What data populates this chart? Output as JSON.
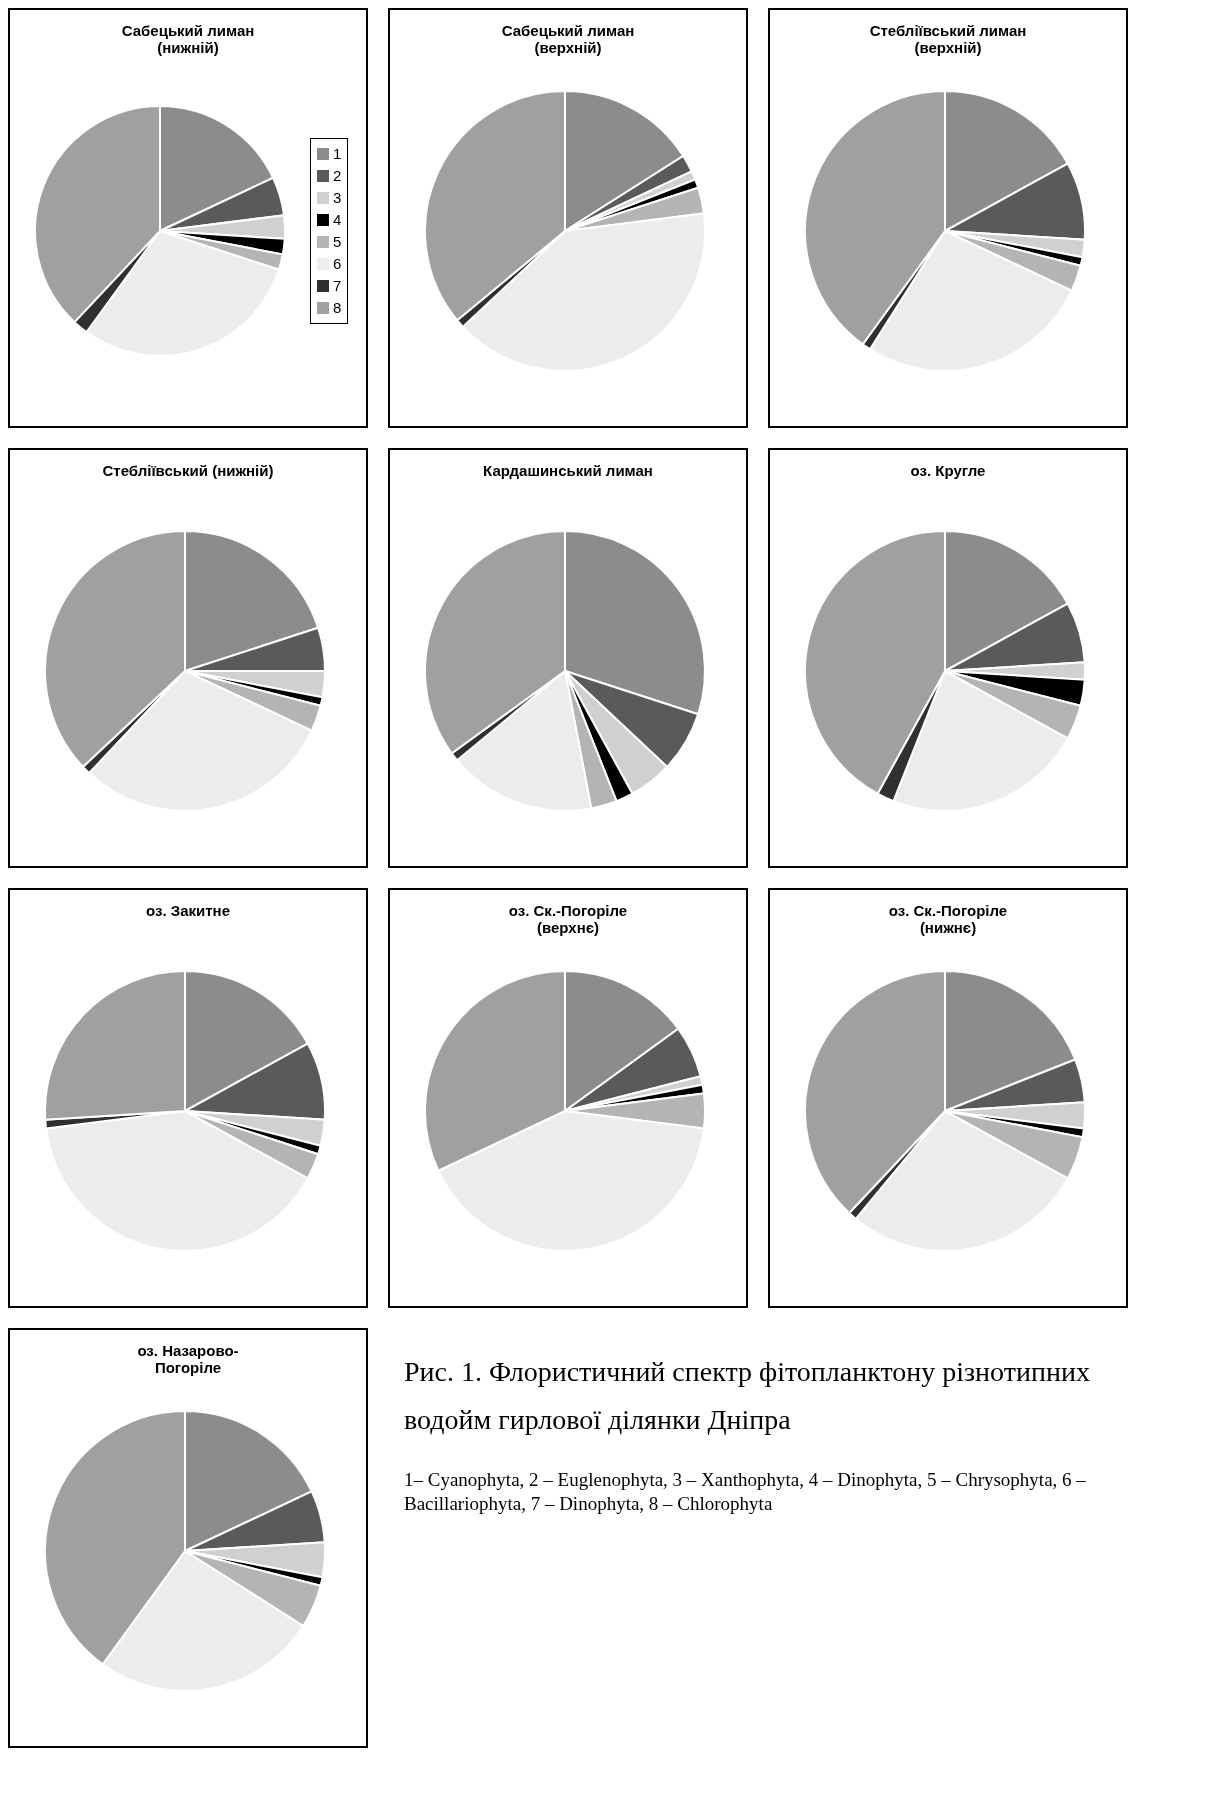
{
  "chart_data": [
    {
      "type": "pie",
      "title": "Сабецький лиман\n(нижній)",
      "categories": [
        "1",
        "2",
        "3",
        "4",
        "5",
        "6",
        "7",
        "8"
      ],
      "values": [
        18,
        5,
        3,
        2,
        2,
        30,
        2,
        38
      ],
      "colors": [
        "#8c8c8c",
        "#5a5a5a",
        "#d0d0d0",
        "#000000",
        "#b4b4b4",
        "#ececec",
        "#303030",
        "#a0a0a0"
      ],
      "legend": "right"
    },
    {
      "type": "pie",
      "title": "Сабецький лиман\n(верхній)",
      "categories": [
        null,
        null,
        null,
        null,
        null,
        null,
        null,
        null
      ],
      "values": [
        16,
        2,
        1,
        1,
        3,
        40,
        1,
        36
      ],
      "colors": [
        "#8c8c8c",
        "#5a5a5a",
        "#d0d0d0",
        "#000000",
        "#b4b4b4",
        "#ececec",
        "#303030",
        "#a0a0a0"
      ]
    },
    {
      "type": "pie",
      "title": "Стебліївський лиман\n(верхній)",
      "categories": [
        null,
        null,
        null,
        null,
        null,
        null,
        null,
        null
      ],
      "values": [
        17,
        9,
        2,
        1,
        3,
        27,
        1,
        40
      ],
      "colors": [
        "#8c8c8c",
        "#5a5a5a",
        "#d0d0d0",
        "#000000",
        "#b4b4b4",
        "#ececec",
        "#303030",
        "#a0a0a0"
      ]
    },
    {
      "type": "pie",
      "title": "Стебліївський (нижній)",
      "categories": [
        null,
        null,
        null,
        null,
        null,
        null,
        null,
        null
      ],
      "values": [
        20,
        5,
        3,
        1,
        3,
        30,
        1,
        37
      ],
      "colors": [
        "#8c8c8c",
        "#5a5a5a",
        "#d0d0d0",
        "#000000",
        "#b4b4b4",
        "#ececec",
        "#303030",
        "#a0a0a0"
      ]
    },
    {
      "type": "pie",
      "title": "Кардашинський лиман",
      "categories": [
        null,
        null,
        null,
        null,
        null,
        null,
        null,
        null
      ],
      "values": [
        30,
        7,
        5,
        2,
        3,
        17,
        1,
        35
      ],
      "colors": [
        "#8c8c8c",
        "#5a5a5a",
        "#d0d0d0",
        "#000000",
        "#b4b4b4",
        "#ececec",
        "#303030",
        "#a0a0a0"
      ]
    },
    {
      "type": "pie",
      "title": "оз. Кругле",
      "categories": [
        null,
        null,
        null,
        null,
        null,
        null,
        null,
        null
      ],
      "values": [
        17,
        7,
        2,
        3,
        4,
        23,
        2,
        42
      ],
      "colors": [
        "#8c8c8c",
        "#5a5a5a",
        "#d0d0d0",
        "#000000",
        "#b4b4b4",
        "#ececec",
        "#303030",
        "#a0a0a0"
      ]
    },
    {
      "type": "pie",
      "title": "оз. Закитне",
      "categories": [
        null,
        null,
        null,
        null,
        null,
        null,
        null,
        null
      ],
      "values": [
        17,
        9,
        3,
        1,
        3,
        40,
        1,
        26
      ],
      "colors": [
        "#8c8c8c",
        "#5a5a5a",
        "#d0d0d0",
        "#000000",
        "#b4b4b4",
        "#ececec",
        "#303030",
        "#a0a0a0"
      ]
    },
    {
      "type": "pie",
      "title": "оз. Ск.-Погоріле\n(верхнє)",
      "categories": [
        null,
        null,
        null,
        null,
        null,
        null,
        null,
        null
      ],
      "values": [
        15,
        6,
        1,
        1,
        4,
        41,
        0,
        32
      ],
      "colors": [
        "#8c8c8c",
        "#5a5a5a",
        "#d0d0d0",
        "#000000",
        "#b4b4b4",
        "#ececec",
        "#303030",
        "#a0a0a0"
      ]
    },
    {
      "type": "pie",
      "title": "оз. Ск.-Погоріле\n(нижнє)",
      "categories": [
        null,
        null,
        null,
        null,
        null,
        null,
        null,
        null
      ],
      "values": [
        19,
        5,
        3,
        1,
        5,
        28,
        1,
        38
      ],
      "colors": [
        "#8c8c8c",
        "#5a5a5a",
        "#d0d0d0",
        "#000000",
        "#b4b4b4",
        "#ececec",
        "#303030",
        "#a0a0a0"
      ]
    },
    {
      "type": "pie",
      "title": "оз. Назарово-\nПогоріле",
      "categories": [
        null,
        null,
        null,
        null,
        null,
        null,
        null,
        null
      ],
      "values": [
        18,
        6,
        4,
        1,
        5,
        26,
        0,
        40
      ],
      "colors": [
        "#8c8c8c",
        "#5a5a5a",
        "#d0d0d0",
        "#000000",
        "#b4b4b4",
        "#ececec",
        "#303030",
        "#a0a0a0"
      ]
    },
    {
      "type": "other",
      "title": "Рис. 1. Флористичний спектр фітопланктону різнотипних водойм гирлової ділянки Дніпра",
      "annotations": [
        "1– Cyanophyta, 2 –  Euglenophyta, 3 – Xanthophyta, 4 – Dinophyta, 5 – Chrysophyta, 6 – Bacillariophyta, 7 – Dinophyta, 8 – Chlorophyta"
      ]
    }
  ]
}
